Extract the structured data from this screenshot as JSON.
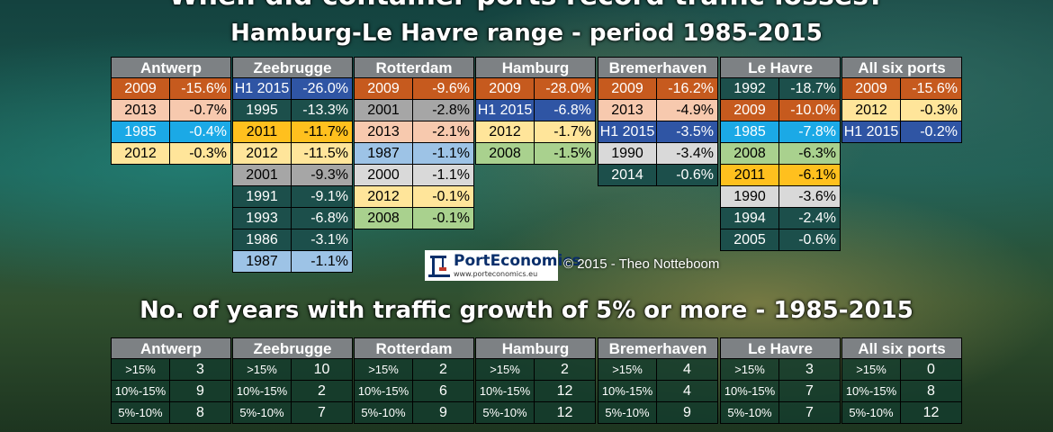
{
  "title_main": "When did container ports record traffic losses?",
  "title_top": "Hamburg-Le Havre range - period 1985-2015",
  "title_bottom": "No. of years with traffic growth of 5% or more - 1985-2015",
  "logo_text": "PortEconomics",
  "logo_url": "www.porteconomics.eu",
  "credit": "© 2015 - Theo Notteboom",
  "colors": {
    "2009": "#c65a1e",
    "2013": "#f7c9ae",
    "1985": "#1ba9e6",
    "2012": "#ffe59a",
    "H1 2015": "#2f55a4",
    "1995": "#1c4f4b",
    "2011": "#ffc01e",
    "2001": "#a6a6a6",
    "1991": "#1c4f4b",
    "1993": "#1c4f4b",
    "1986": "#1c4f4b",
    "1987": "#9dc3e6",
    "2000": "#d9d9d9",
    "2008": "#a9d18e",
    "1990": "#d9d9d9",
    "2014": "#1c4f4b",
    "1992": "#1c4f4b",
    "1994": "#1c4f4b",
    "2005": "#1c4f4b"
  },
  "chart_data": [
    {
      "type": "table",
      "title": "Hamburg-Le Havre range - period 1985-2015",
      "ports": [
        {
          "name": "Antwerp",
          "rows": [
            [
              "2009",
              "-15.6%"
            ],
            [
              "2013",
              "-0.7%"
            ],
            [
              "1985",
              "-0.4%"
            ],
            [
              "2012",
              "-0.3%"
            ]
          ]
        },
        {
          "name": "Zeebrugge",
          "rows": [
            [
              "H1 2015",
              "-26.0%"
            ],
            [
              "1995",
              "-13.3%"
            ],
            [
              "2011",
              "-11.7%"
            ],
            [
              "2012",
              "-11.5%"
            ],
            [
              "2001",
              "-9.3%"
            ],
            [
              "1991",
              "-9.1%"
            ],
            [
              "1993",
              "-6.8%"
            ],
            [
              "1986",
              "-3.1%"
            ],
            [
              "1987",
              "-1.1%"
            ]
          ]
        },
        {
          "name": "Rotterdam",
          "rows": [
            [
              "2009",
              "-9.6%"
            ],
            [
              "2001",
              "-2.8%"
            ],
            [
              "2013",
              "-2.1%"
            ],
            [
              "1987",
              "-1.1%"
            ],
            [
              "2000",
              "-1.1%"
            ],
            [
              "2012",
              "-0.1%"
            ],
            [
              "2008",
              "-0.1%"
            ]
          ]
        },
        {
          "name": "Hamburg",
          "rows": [
            [
              "2009",
              "-28.0%"
            ],
            [
              "H1 2015",
              "-6.8%"
            ],
            [
              "2012",
              "-1.7%"
            ],
            [
              "2008",
              "-1.5%"
            ]
          ]
        },
        {
          "name": "Bremerhaven",
          "rows": [
            [
              "2009",
              "-16.2%"
            ],
            [
              "2013",
              "-4.9%"
            ],
            [
              "H1 2015",
              "-3.5%"
            ],
            [
              "1990",
              "-3.4%"
            ],
            [
              "2014",
              "-0.6%"
            ]
          ]
        },
        {
          "name": "Le Havre",
          "rows": [
            [
              "1992",
              "-18.7%"
            ],
            [
              "2009",
              "-10.0%"
            ],
            [
              "1985",
              "-7.8%"
            ],
            [
              "2008",
              "-6.3%"
            ],
            [
              "2011",
              "-6.1%"
            ],
            [
              "1990",
              "-3.6%"
            ],
            [
              "1994",
              "-2.4%"
            ],
            [
              "2005",
              "-0.6%"
            ]
          ]
        },
        {
          "name": "All six ports",
          "rows": [
            [
              "2009",
              "-15.6%"
            ],
            [
              "2012",
              "-0.3%"
            ],
            [
              "H1 2015",
              "-0.2%"
            ]
          ]
        }
      ]
    },
    {
      "type": "table",
      "title": "No. of years with traffic growth of 5% or more - 1985-2015",
      "ports": [
        {
          "name": "Antwerp",
          "rows": [
            [
              ">15%",
              "3"
            ],
            [
              "10%-15%",
              "9"
            ],
            [
              "5%-10%",
              "8"
            ]
          ]
        },
        {
          "name": "Zeebrugge",
          "rows": [
            [
              ">15%",
              "10"
            ],
            [
              "10%-15%",
              "2"
            ],
            [
              "5%-10%",
              "7"
            ]
          ]
        },
        {
          "name": "Rotterdam",
          "rows": [
            [
              ">15%",
              "2"
            ],
            [
              "10%-15%",
              "6"
            ],
            [
              "5%-10%",
              "9"
            ]
          ]
        },
        {
          "name": "Hamburg",
          "rows": [
            [
              ">15%",
              "2"
            ],
            [
              "10%-15%",
              "12"
            ],
            [
              "5%-10%",
              "12"
            ]
          ]
        },
        {
          "name": "Bremerhaven",
          "rows": [
            [
              ">15%",
              "4"
            ],
            [
              "10%-15%",
              "4"
            ],
            [
              "5%-10%",
              "9"
            ]
          ]
        },
        {
          "name": "Le Havre",
          "rows": [
            [
              ">15%",
              "3"
            ],
            [
              "10%-15%",
              "7"
            ],
            [
              "5%-10%",
              "7"
            ]
          ]
        },
        {
          "name": "All six ports",
          "rows": [
            [
              ">15%",
              "0"
            ],
            [
              "10%-15%",
              "8"
            ],
            [
              "5%-10%",
              "12"
            ]
          ]
        }
      ]
    }
  ]
}
